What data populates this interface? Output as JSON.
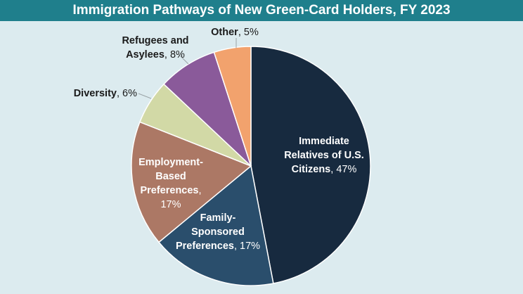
{
  "chart_data": {
    "type": "pie",
    "title": "Immigration Pathways of New Green-Card Holders, FY 2023",
    "slices": [
      {
        "label": "Immediate Relatives of U.S. Citizens",
        "value": 47,
        "value_label": "47%",
        "color": "#172a3f"
      },
      {
        "label": "Family-Sponsored Preferences",
        "value": 17,
        "value_label": "17%",
        "color": "#2a4e6c"
      },
      {
        "label": "Employment-Based Preferences",
        "value": 17,
        "value_label": "17%",
        "color": "#ac7865"
      },
      {
        "label": "Diversity",
        "value": 6,
        "value_label": "6%",
        "color": "#d2d9a6"
      },
      {
        "label": "Refugees and Asylees",
        "value": 8,
        "value_label": "8%",
        "color": "#8a5a9a"
      },
      {
        "label": "Other",
        "value": 5,
        "value_label": "5%",
        "color": "#f2a26d"
      }
    ],
    "start": "12 o'clock",
    "direction": "clockwise",
    "legend": "none"
  },
  "colors": {
    "background": "#dcebef",
    "title_bar": "#1f7f8c",
    "title_text": "#ffffff",
    "outside_label_text": "#1a1a1a",
    "inside_label_text": "#ffffff"
  }
}
